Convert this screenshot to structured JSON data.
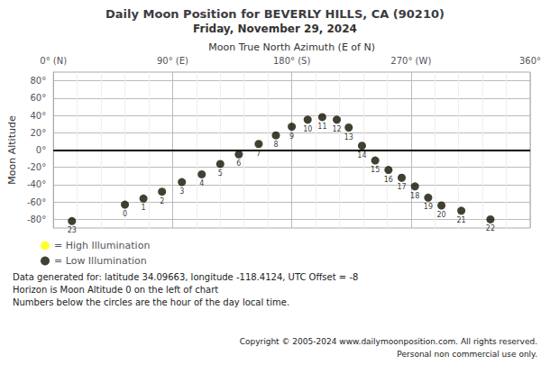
{
  "chart_data": {
    "type": "scatter",
    "title": "Daily Moon Position for BEVERLY HILLS, CA (90210)",
    "subtitle": "Friday, November 29, 2024",
    "xlabel": "Moon True North Azimuth (E of N)",
    "ylabel": "Moon Altitude",
    "xlim": [
      0,
      360
    ],
    "ylim": [
      -90,
      90
    ],
    "xticks": [
      {
        "value": 0,
        "label": "0° (N)"
      },
      {
        "value": 90,
        "label": "90° (E)"
      },
      {
        "value": 180,
        "label": "180° (S)"
      },
      {
        "value": 270,
        "label": "270° (W)"
      },
      {
        "value": 360,
        "label": "360°"
      }
    ],
    "yticks": [
      {
        "value": -80,
        "label": "-80°"
      },
      {
        "value": -60,
        "label": "-60°"
      },
      {
        "value": -40,
        "label": "-40°"
      },
      {
        "value": -20,
        "label": "-20°"
      },
      {
        "value": 0,
        "label": "0°"
      },
      {
        "value": 20,
        "label": "20°"
      },
      {
        "value": 40,
        "label": "40°"
      },
      {
        "value": 60,
        "label": "60°"
      },
      {
        "value": 80,
        "label": "80°"
      }
    ],
    "grid": true,
    "legend": "bottom-left",
    "series": [
      {
        "name": "= High Illumination",
        "color": "#ffff00",
        "x": [],
        "values": [],
        "hours": []
      },
      {
        "name": "= Low Illumination",
        "color": "#111100",
        "x": [
          14,
          54,
          68,
          82,
          97,
          112,
          126,
          140,
          155,
          168,
          180,
          192,
          203,
          214,
          223,
          233,
          243,
          253,
          263,
          273,
          283,
          293,
          308,
          330
        ],
        "values": [
          -82,
          -63,
          -56,
          -48,
          -37,
          -28,
          -16,
          -5,
          7,
          17,
          27,
          35,
          38,
          35,
          26,
          5,
          -12,
          -23,
          -32,
          -42,
          -55,
          -64,
          -70,
          -80
        ],
        "hours": [
          23,
          0,
          1,
          2,
          3,
          4,
          5,
          6,
          7,
          8,
          9,
          10,
          11,
          12,
          13,
          14,
          15,
          16,
          17,
          18,
          19,
          20,
          21,
          22
        ]
      }
    ],
    "horizon": {
      "value": 0,
      "color": "#000000"
    },
    "annotations": [
      "Data generated for: latitude 34.09663, longitude -118.4124, UTC Offset = -8",
      "Horizon is Moon Altitude 0 on the left of chart",
      "Numbers below the circles are the hour of the day local time."
    ],
    "copyright": [
      "Copyright © 2005-2024 www.dailymoonposition.com. All rights reserved.",
      "Personal non commercial use only."
    ]
  }
}
